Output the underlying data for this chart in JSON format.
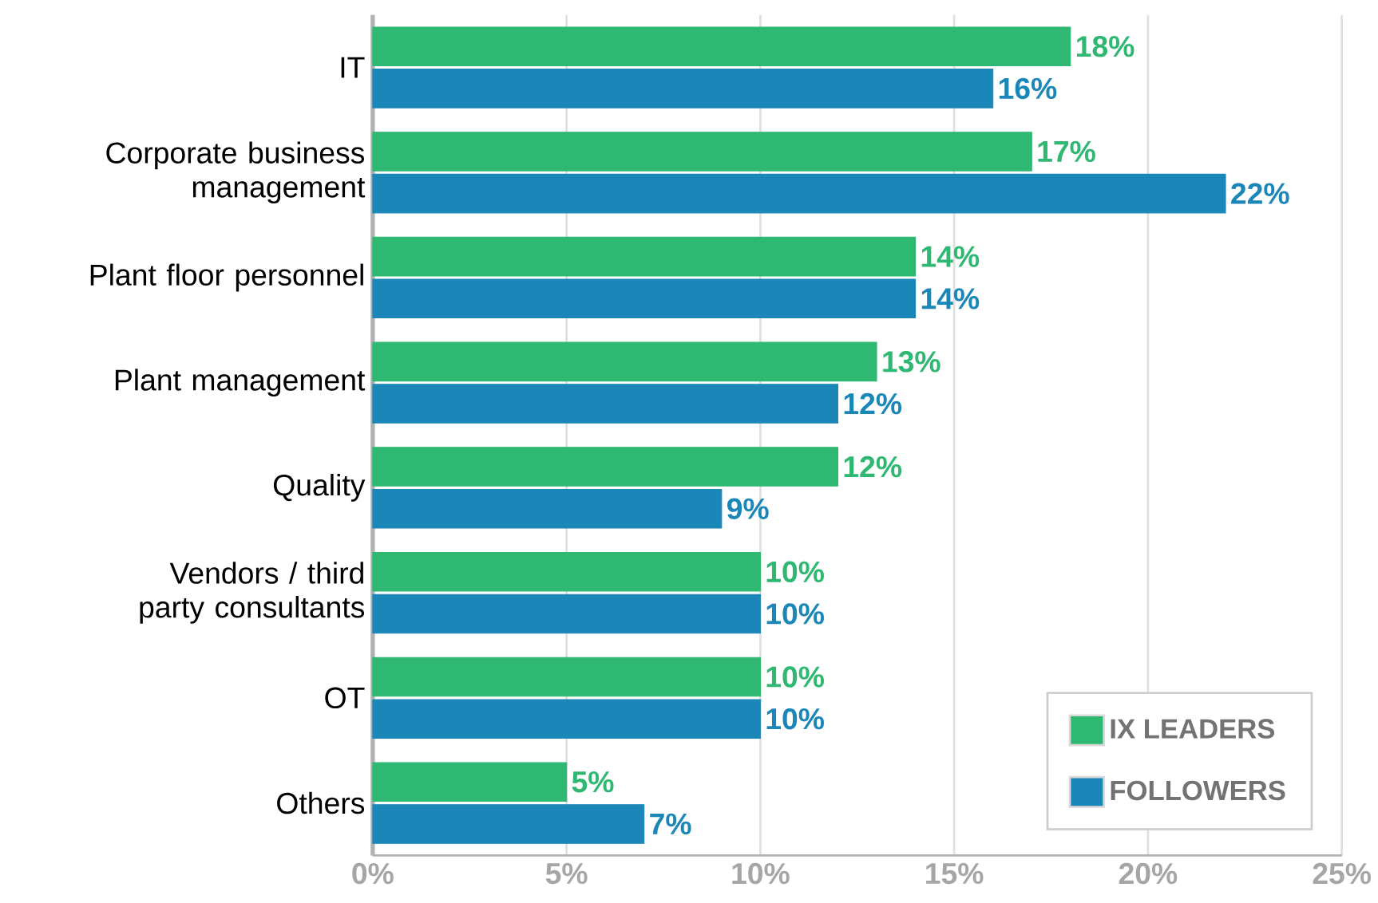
{
  "chart_data": {
    "type": "bar",
    "orientation": "horizontal",
    "categories": [
      "IT",
      "Corporate business management",
      "Plant floor personnel",
      "Plant management",
      "Quality",
      "Vendors / third party consultants",
      "OT",
      "Others"
    ],
    "series": [
      {
        "name": "IX LEADERS",
        "color": "#2eb872",
        "values": [
          18,
          17,
          14,
          13,
          12,
          10,
          10,
          5
        ],
        "value_labels": [
          "18%",
          "17%",
          "14%",
          "13%",
          "12%",
          "10%",
          "10%",
          "5%"
        ]
      },
      {
        "name": "FOLLOWERS",
        "color": "#1a87b8",
        "values": [
          16,
          22,
          14,
          12,
          9,
          10,
          10,
          7
        ],
        "value_labels": [
          "16%",
          "22%",
          "14%",
          "12%",
          "9%",
          "10%",
          "10%",
          "7%"
        ]
      }
    ],
    "xlim": [
      0,
      25
    ],
    "xticks": [
      {
        "value": 0,
        "label": "0%"
      },
      {
        "value": 5,
        "label": "5%"
      },
      {
        "value": 10,
        "label": "10%"
      },
      {
        "value": 15,
        "label": "15%"
      },
      {
        "value": 20,
        "label": "20%"
      },
      {
        "value": 25,
        "label": "25%"
      }
    ],
    "grid": "x",
    "legend": "bottom right"
  }
}
